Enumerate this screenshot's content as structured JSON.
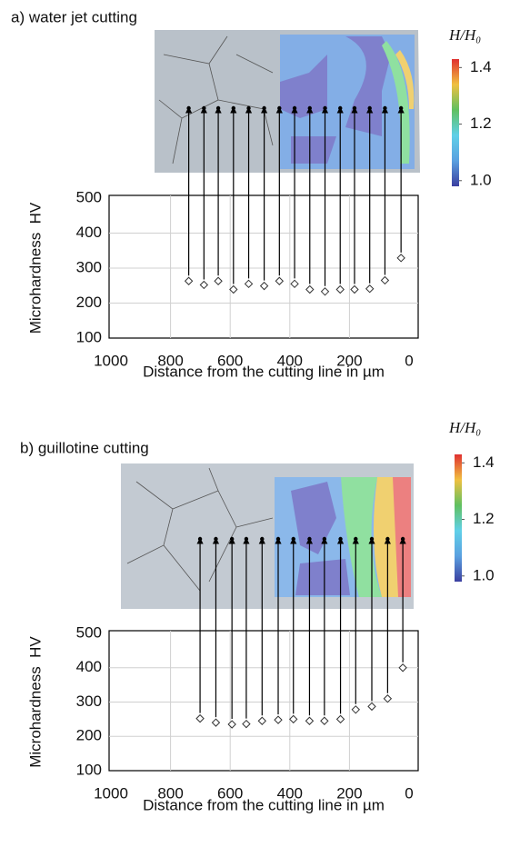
{
  "chart_data": [
    {
      "type": "scatter",
      "title": "a) water jet cutting",
      "xlabel": "Distance from the cutting line in µm",
      "ylabel": "Microhardness  HV",
      "x": [
        739,
        688,
        640,
        589,
        538,
        486,
        435,
        384,
        333,
        282,
        231,
        183,
        132,
        81,
        27
      ],
      "values": [
        263,
        252,
        263,
        239,
        255,
        249,
        263,
        255,
        239,
        233,
        239,
        239,
        241,
        265,
        329
      ],
      "color": "#333333",
      "xlim": [
        1000,
        0
      ],
      "ylim": [
        100,
        500
      ],
      "xticks": [
        1000,
        800,
        600,
        400,
        200,
        0
      ],
      "yticks": [
        100,
        200,
        300,
        400,
        500
      ],
      "grid": true,
      "colorbar": {
        "label": "H/H₀",
        "lim": [
          0.98,
          1.43
        ],
        "ticks": [
          {
            "value": 1,
            "label": "1.0"
          },
          {
            "value": 1.2,
            "label": "1.2"
          },
          {
            "value": 1.4,
            "label": "1.4"
          }
        ]
      }
    },
    {
      "type": "scatter",
      "title": "b) guillotine cutting",
      "xlabel": "Distance from the cutting line in µm",
      "ylabel": "Microhardness  HV",
      "x": [
        701,
        648,
        594,
        546,
        493,
        439,
        388,
        334,
        284,
        230,
        179,
        125,
        72,
        21
      ],
      "values": [
        252,
        240,
        235,
        236,
        245,
        248,
        250,
        245,
        245,
        250,
        278,
        287,
        310,
        400
      ],
      "color": "#333333",
      "xlim": [
        1000,
        0
      ],
      "ylim": [
        100,
        500
      ],
      "xticks": [
        1000,
        800,
        600,
        400,
        200,
        0
      ],
      "yticks": [
        100,
        200,
        300,
        400,
        500
      ],
      "grid": true,
      "colorbar": {
        "label": "H/H₀",
        "lim": [
          0.98,
          1.43
        ],
        "ticks": [
          {
            "value": 1,
            "label": "1.0"
          },
          {
            "value": 1.2,
            "label": "1.2"
          },
          {
            "value": 1.4,
            "label": "1.4"
          }
        ]
      }
    }
  ]
}
